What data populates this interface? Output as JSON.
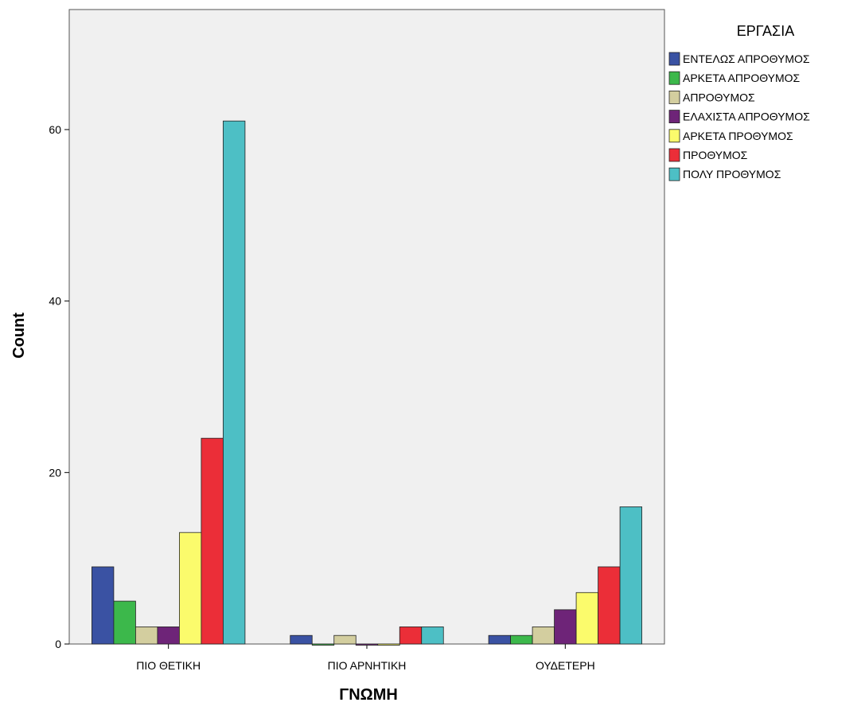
{
  "chart_data": {
    "type": "bar",
    "xlabel": "ΓΝΩΜΗ",
    "ylabel": "Count",
    "ylim": [
      0,
      74
    ],
    "yticks": [
      0,
      20,
      40,
      60
    ],
    "grid": false,
    "legend_title": "ΕΡΓΑΣΙΑ",
    "legend_position": "right",
    "categories": [
      "ΠΙΟ ΘΕΤΙΚΗ",
      "ΠΙΟ ΑΡΝΗΤΙΚΗ",
      "ΟΥΔΕΤΕΡΗ"
    ],
    "series": [
      {
        "name": "ΕΝΤΕΛΩΣ ΑΠΡΟΘΥΜΟΣ",
        "color": "#3a52a3",
        "values": [
          9,
          1,
          1
        ]
      },
      {
        "name": "ΑΡΚΕΤΑ ΑΠΡΟΘΥΜΟΣ",
        "color": "#3cb84b",
        "values": [
          5,
          0,
          1
        ]
      },
      {
        "name": "ΑΠΡΟΘΥΜΟΣ",
        "color": "#d3ce9f",
        "values": [
          2,
          1,
          2
        ]
      },
      {
        "name": "ΕΛΑΧΙΣΤΑ ΑΠΡΟΘΥΜΟΣ",
        "color": "#6e2478",
        "values": [
          2,
          0,
          4
        ]
      },
      {
        "name": "ΑΡΚΕΤΑ ΠΡΟΘΥΜΟΣ",
        "color": "#fbfb6c",
        "values": [
          13,
          0,
          6
        ]
      },
      {
        "name": "ΠΡΟΘΥΜΟΣ",
        "color": "#eb2e38",
        "values": [
          24,
          2,
          9
        ]
      },
      {
        "name": "ΠΟΛΥ ΠΡΟΘΥΜΟΣ",
        "color": "#4dbfc5",
        "values": [
          61,
          2,
          16
        ]
      }
    ],
    "plot_background": "#f0f0f0"
  }
}
